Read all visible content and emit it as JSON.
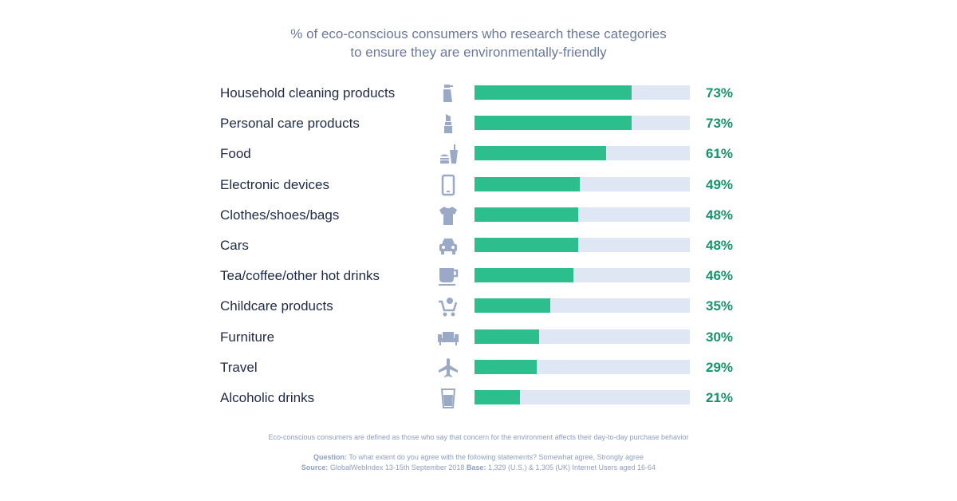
{
  "title_line1": "% of eco-conscious consumers who research these categories",
  "title_line2": "to ensure they are environmentally-friendly",
  "colors": {
    "bar": "#2cbf8d",
    "track": "#dfe7f5",
    "value_text": "#16936a",
    "icon": "#9aa9c5"
  },
  "chart_data": {
    "type": "bar",
    "orientation": "horizontal",
    "title": "% of eco-conscious consumers who research these categories to ensure they are environmentally-friendly",
    "xlim": [
      0,
      100
    ],
    "categories": [
      "Household cleaning products",
      "Personal care products",
      "Food",
      "Electronic devices",
      "Clothes/shoes/bags",
      "Cars",
      "Tea/coffee/other hot drinks",
      "Childcare products",
      "Furniture",
      "Travel",
      "Alcoholic drinks"
    ],
    "values": [
      73,
      73,
      61,
      49,
      48,
      48,
      46,
      35,
      30,
      29,
      21
    ],
    "value_labels": [
      "73%",
      "73%",
      "61%",
      "49%",
      "48%",
      "48%",
      "46%",
      "35%",
      "30%",
      "29%",
      "21%"
    ],
    "icons": [
      "spray-bottle-icon",
      "lipstick-icon",
      "food-drink-icon",
      "smartphone-icon",
      "tshirt-icon",
      "car-icon",
      "coffee-cup-icon",
      "shopping-cart-icon",
      "sofa-icon",
      "airplane-icon",
      "glass-icon"
    ]
  },
  "footnote": "Eco-conscious consumers are defined as those who say that concern for the environment affects their day-to-day purchase behavior",
  "question_label": "Question:",
  "question_text": "To what extent do you agree with the following statements? Somewhat agree, Strongly agree",
  "source_label": "Source:",
  "source_text": "GlobalWebIndex 13-15th September 2018",
  "base_label": "Base:",
  "base_text": "1,329 (U.S.) & 1,305 (UK) Internet Users aged 16-64"
}
